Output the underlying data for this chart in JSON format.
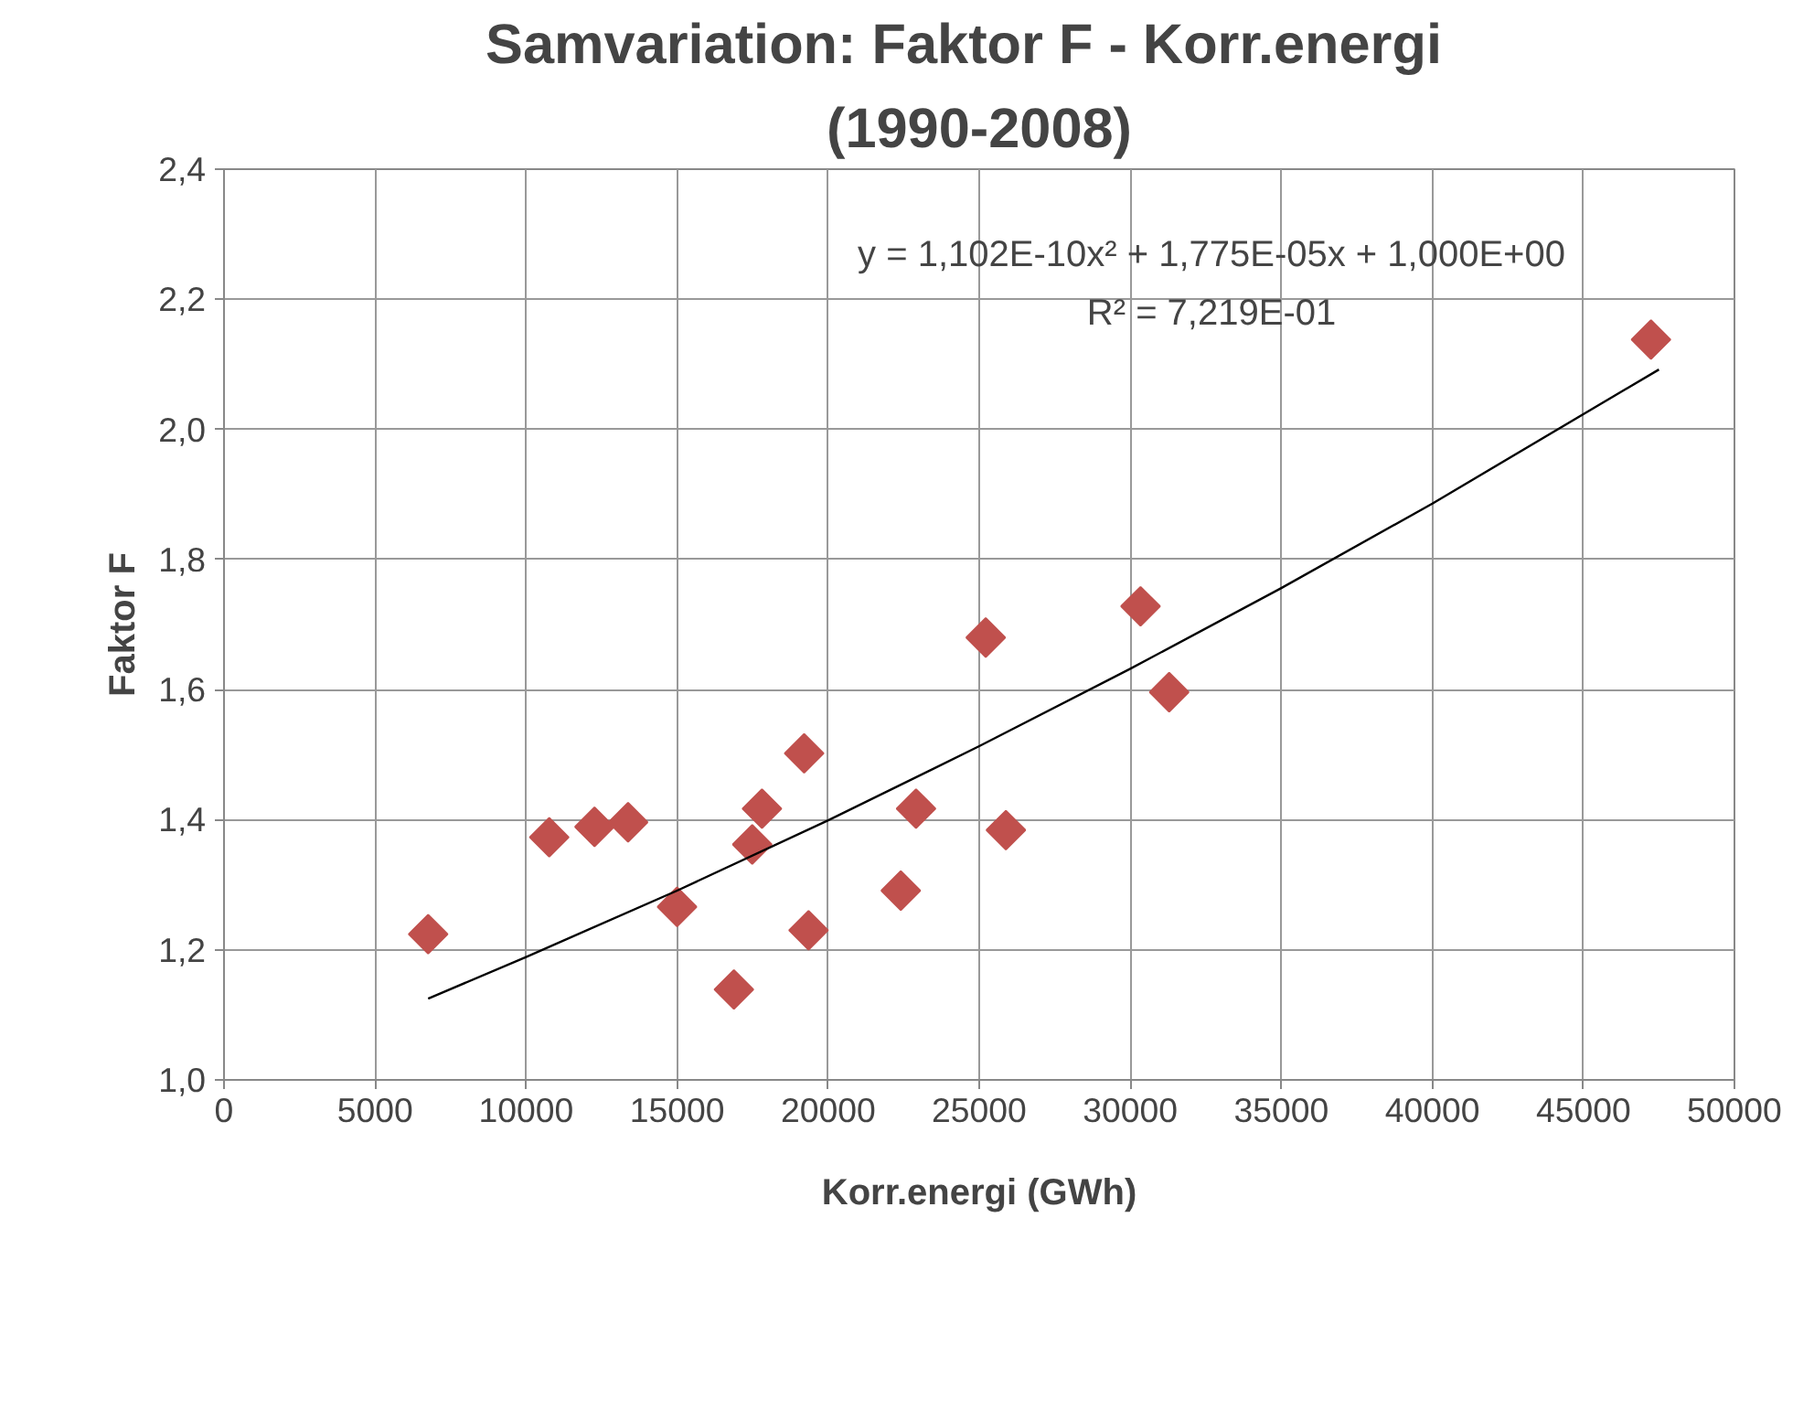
{
  "chart_data": {
    "type": "scatter",
    "title": "Samvariation:   Faktor F - Korr.energi",
    "subtitle": "(1990-2008)",
    "xlabel": "Korr.energi (GWh)",
    "ylabel": "Faktor F",
    "annotations": [
      "y = 1,102E-10x² + 1,775E-05x + 1,000E+00",
      "R² = 7,219E-01"
    ],
    "xlim": [
      0,
      50000
    ],
    "xticks": [
      0,
      5000,
      10000,
      15000,
      20000,
      25000,
      30000,
      35000,
      40000,
      45000,
      50000
    ],
    "ylim": [
      1.0,
      2.4
    ],
    "yticks": [
      {
        "value": 1.0,
        "label": "1,0"
      },
      {
        "value": 1.2,
        "label": "1,2"
      },
      {
        "value": 1.4,
        "label": "1,4"
      },
      {
        "value": 1.6,
        "label": "1,6"
      },
      {
        "value": 1.8,
        "label": "1,8"
      },
      {
        "value": 2.0,
        "label": "2,0"
      },
      {
        "value": 2.2,
        "label": "2,2"
      },
      {
        "value": 2.4,
        "label": "2,4"
      }
    ],
    "grid": true,
    "marker": "diamond",
    "series": [
      {
        "color": "#c0504d",
        "x": [
          6758,
          10766,
          12265,
          13376,
          14997,
          16879,
          17486,
          17808,
          19204,
          19350,
          22404,
          22908,
          25883,
          25215,
          30340,
          31287,
          47237
        ],
        "values": [
          1.224,
          1.373,
          1.389,
          1.396,
          1.266,
          1.139,
          1.362,
          1.417,
          1.502,
          1.23,
          1.291,
          1.417,
          1.384,
          1.68,
          1.728,
          1.596,
          2.138
        ]
      },
      {
        "type": "line",
        "color": "#000000",
        "line_style": "solid",
        "marker": "none",
        "x": [
          6758,
          10000,
          15000,
          20000,
          25000,
          30000,
          35000,
          40000,
          47500
        ],
        "values": [
          1.125,
          1.189,
          1.291,
          1.399,
          1.513,
          1.632,
          1.756,
          1.886,
          2.092
        ]
      }
    ]
  }
}
